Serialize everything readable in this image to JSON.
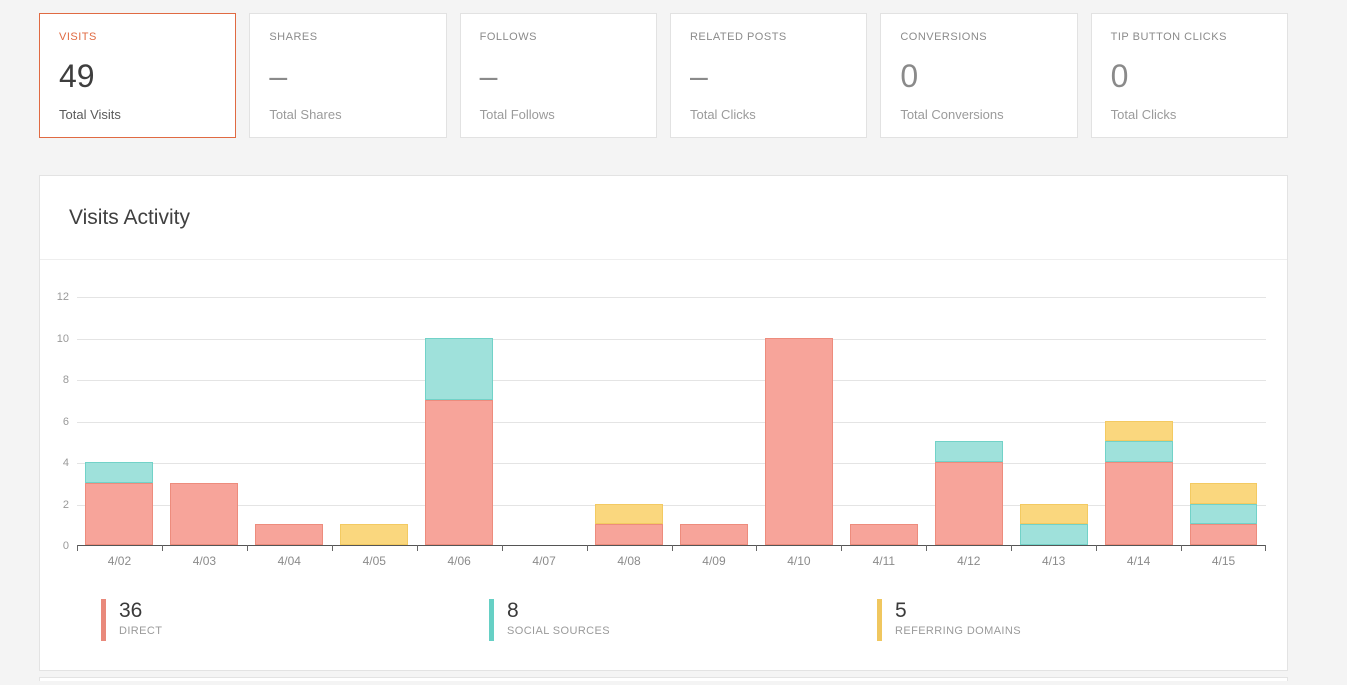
{
  "colors": {
    "page_background": "#f4f4f4",
    "accent_orange": "#e06a42",
    "axis": "#555555",
    "gridline": "#e4e4e4"
  },
  "stat_cards": [
    {
      "id": "visits",
      "title": "VISITS",
      "value": "49",
      "label": "Total Visits",
      "active": true
    },
    {
      "id": "shares",
      "title": "SHARES",
      "value": "–",
      "label": "Total Shares",
      "active": false
    },
    {
      "id": "follows",
      "title": "FOLLOWS",
      "value": "–",
      "label": "Total Follows",
      "active": false
    },
    {
      "id": "related-posts",
      "title": "RELATED POSTS",
      "value": "–",
      "label": "Total Clicks",
      "active": false
    },
    {
      "id": "conversions",
      "title": "CONVERSIONS",
      "value": "0",
      "label": "Total Conversions",
      "active": false
    },
    {
      "id": "tip-button-clicks",
      "title": "TIP BUTTON CLICKS",
      "value": "0",
      "label": "Total Clicks",
      "active": false
    }
  ],
  "panel": {
    "title": "Visits Activity"
  },
  "chart_data": {
    "type": "bar",
    "stacked": true,
    "title": "Visits Activity",
    "categories": [
      "4/02",
      "4/03",
      "4/04",
      "4/05",
      "4/06",
      "4/07",
      "4/08",
      "4/09",
      "4/10",
      "4/11",
      "4/12",
      "4/13",
      "4/14",
      "4/15"
    ],
    "series": [
      {
        "name": "DIRECT",
        "total": 36,
        "fill": "#f7a49a",
        "border": "#ed8c7d",
        "legend_color": "#e9897b",
        "values": [
          3,
          3,
          1,
          0,
          7,
          0,
          1,
          1,
          10,
          1,
          4,
          0,
          4,
          1
        ]
      },
      {
        "name": "SOCIAL SOURCES",
        "total": 8,
        "fill": "#9fe1db",
        "border": "#72d2c8",
        "legend_color": "#66d0c5",
        "values": [
          1,
          0,
          0,
          0,
          3,
          0,
          0,
          0,
          0,
          0,
          1,
          1,
          1,
          1
        ]
      },
      {
        "name": "REFERRING DOMAINS",
        "total": 5,
        "fill": "#fad77e",
        "border": "#f3ca62",
        "legend_color": "#f0c75f",
        "values": [
          0,
          0,
          0,
          1,
          0,
          0,
          1,
          0,
          0,
          0,
          0,
          1,
          1,
          1
        ]
      }
    ],
    "ylim": [
      0,
      12
    ],
    "yticks": [
      0,
      2,
      4,
      6,
      8,
      10,
      12
    ],
    "grid": true,
    "legend_position": "bottom"
  },
  "legend": [
    {
      "value": "36",
      "label": "DIRECT"
    },
    {
      "value": "8",
      "label": "SOCIAL SOURCES"
    },
    {
      "value": "5",
      "label": "REFERRING DOMAINS"
    }
  ]
}
